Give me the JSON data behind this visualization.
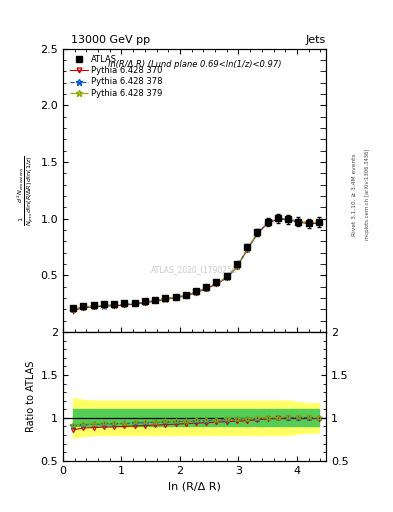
{
  "title": "13000 GeV pp",
  "title_right": "Jets",
  "subtitle": "ln(R/Δ R) (Lund plane 0.69<ln(1/z)<0.97)",
  "watermark": "ATLAS_2020_I1790256",
  "ylabel_main": "$\\frac{1}{N_{\\mathrm{jets}}}\\frac{d^2 N_{\\mathrm{emissions}}}{d\\ln(R/\\Delta R)\\,d\\ln(1/z)}$",
  "ylabel_ratio": "Ratio to ATLAS",
  "xlabel": "ln (R/Δ R)",
  "right_label": "Rivet 3.1.10, ≥ 3.4M events",
  "right_label2": "mcplots.cern.ch [arXiv:1306.3436]",
  "x_data": [
    0.175,
    0.35,
    0.525,
    0.7,
    0.875,
    1.05,
    1.225,
    1.4,
    1.575,
    1.75,
    1.925,
    2.1,
    2.275,
    2.45,
    2.625,
    2.8,
    2.975,
    3.15,
    3.325,
    3.5,
    3.675,
    3.85,
    4.025,
    4.2,
    4.375
  ],
  "atlas_y": [
    0.215,
    0.232,
    0.238,
    0.243,
    0.248,
    0.252,
    0.26,
    0.27,
    0.285,
    0.3,
    0.312,
    0.33,
    0.36,
    0.398,
    0.438,
    0.498,
    0.598,
    0.752,
    0.878,
    0.972,
    1.002,
    0.993,
    0.973,
    0.958,
    0.968
  ],
  "atlas_err": [
    0.012,
    0.008,
    0.008,
    0.008,
    0.008,
    0.008,
    0.008,
    0.008,
    0.008,
    0.008,
    0.008,
    0.008,
    0.008,
    0.012,
    0.012,
    0.018,
    0.022,
    0.028,
    0.032,
    0.038,
    0.038,
    0.038,
    0.038,
    0.038,
    0.045
  ],
  "py370_y": [
    0.188,
    0.215,
    0.222,
    0.228,
    0.232,
    0.237,
    0.247,
    0.257,
    0.272,
    0.287,
    0.302,
    0.317,
    0.347,
    0.382,
    0.422,
    0.477,
    0.572,
    0.726,
    0.866,
    0.96,
    0.995,
    0.99,
    0.97,
    0.955,
    0.96
  ],
  "py378_y": [
    0.2,
    0.222,
    0.228,
    0.233,
    0.238,
    0.243,
    0.253,
    0.263,
    0.278,
    0.293,
    0.308,
    0.323,
    0.353,
    0.388,
    0.428,
    0.483,
    0.578,
    0.732,
    0.872,
    0.967,
    1.002,
    0.997,
    0.977,
    0.962,
    0.967
  ],
  "py379_y": [
    0.202,
    0.223,
    0.229,
    0.234,
    0.239,
    0.244,
    0.254,
    0.264,
    0.279,
    0.294,
    0.309,
    0.324,
    0.354,
    0.389,
    0.429,
    0.484,
    0.579,
    0.733,
    0.873,
    0.968,
    1.003,
    0.998,
    0.978,
    0.963,
    0.968
  ],
  "ratio370_y": [
    0.86,
    0.882,
    0.887,
    0.892,
    0.895,
    0.9,
    0.905,
    0.91,
    0.916,
    0.921,
    0.927,
    0.933,
    0.939,
    0.944,
    0.95,
    0.956,
    0.961,
    0.967,
    0.978,
    0.988,
    0.993,
    0.997,
    0.997,
    0.997,
    0.992
  ],
  "ratio378_y": [
    0.91,
    0.92,
    0.924,
    0.928,
    0.932,
    0.936,
    0.94,
    0.944,
    0.948,
    0.952,
    0.957,
    0.961,
    0.965,
    0.969,
    0.974,
    0.978,
    0.982,
    0.987,
    0.992,
    0.997,
    1.0,
    1.003,
    1.003,
    1.003,
    0.999
  ],
  "ratio379_y": [
    0.918,
    0.927,
    0.931,
    0.935,
    0.939,
    0.943,
    0.947,
    0.951,
    0.955,
    0.959,
    0.963,
    0.967,
    0.971,
    0.975,
    0.979,
    0.983,
    0.987,
    0.991,
    0.995,
    0.999,
    1.002,
    1.005,
    1.005,
    1.005,
    1.001
  ],
  "green_band_lo": 0.9,
  "green_band_hi": 1.1,
  "yellow_band_lo": [
    0.77,
    0.79,
    0.8,
    0.8,
    0.8,
    0.8,
    0.8,
    0.8,
    0.8,
    0.8,
    0.8,
    0.8,
    0.8,
    0.8,
    0.8,
    0.8,
    0.8,
    0.8,
    0.8,
    0.8,
    0.8,
    0.8,
    0.82,
    0.83,
    0.83
  ],
  "yellow_band_hi": [
    1.23,
    1.21,
    1.2,
    1.2,
    1.2,
    1.2,
    1.2,
    1.2,
    1.2,
    1.2,
    1.2,
    1.2,
    1.2,
    1.2,
    1.2,
    1.2,
    1.2,
    1.2,
    1.2,
    1.2,
    1.2,
    1.2,
    1.18,
    1.17,
    1.17
  ],
  "color_370": "#cc0000",
  "color_378": "#0055cc",
  "color_379": "#88aa00",
  "color_atlas": "black",
  "xlim": [
    0,
    4.5
  ],
  "ylim_main": [
    0.0,
    2.5
  ],
  "ylim_ratio": [
    0.5,
    2.0
  ],
  "yticks_main": [
    0.5,
    1.0,
    1.5,
    2.0,
    2.5
  ],
  "yticks_ratio": [
    0.5,
    1.0,
    1.5,
    2.0
  ],
  "ytick_labels_ratio": [
    "0.5",
    "1",
    "1.5",
    "2"
  ]
}
